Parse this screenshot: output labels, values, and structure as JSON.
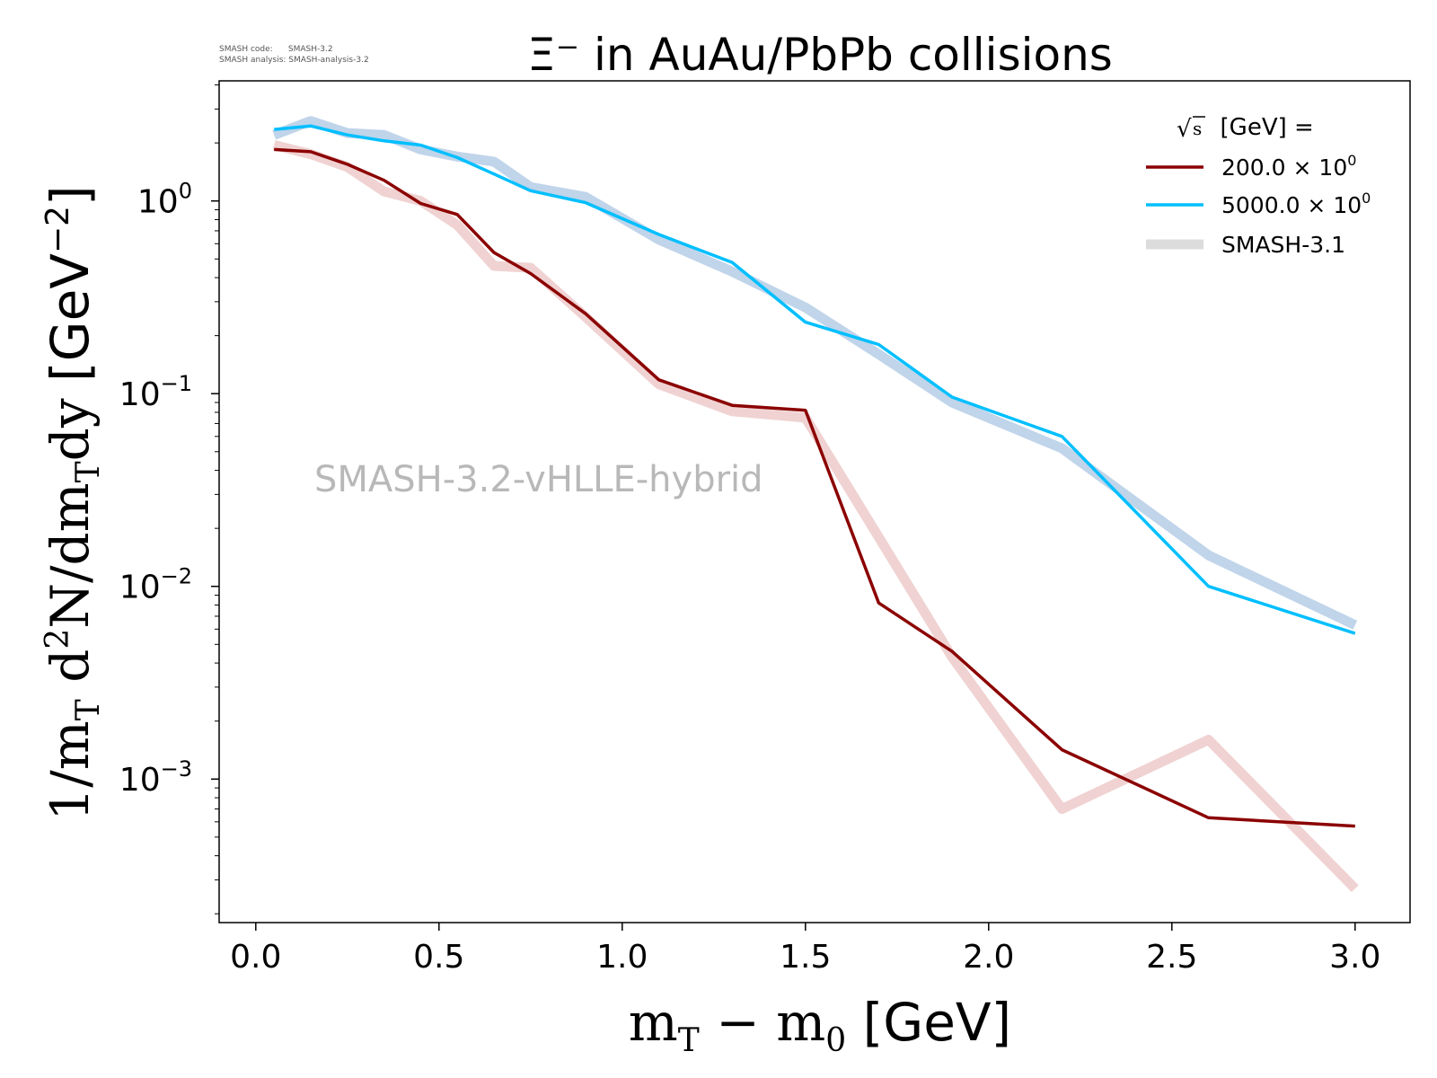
{
  "info": {
    "code_line": "SMASH code:      SMASH-3.2",
    "analysis_line": "SMASH analysis: SMASH-analysis-3.2"
  },
  "chart_data": {
    "type": "line",
    "title": "Ξ⁻ in AuAu/PbPb collisions",
    "xlabel": "m",
    "xlabel_sub": "T",
    "xlabel_mid": " − m",
    "xlabel_sub2": "0",
    "xlabel_unit": " [GeV]",
    "ylabel_parts": {
      "a": "1/m",
      "a_sub": "T",
      "b": " d",
      "b_sup": "2",
      "c": "N/dm",
      "c_sub": "T",
      "d": "dy",
      "unit": " [GeV",
      "unit_sup": "−2",
      "unit_end": "]"
    },
    "xlim": [
      -0.1,
      3.15
    ],
    "ylim": [
      0.00018,
      4.2
    ],
    "y_scale": "log",
    "x_ticks": [
      "0.0",
      "0.5",
      "1.0",
      "1.5",
      "2.0",
      "2.5",
      "3.0"
    ],
    "y_ticks": [
      {
        "base": "10",
        "exp": "0"
      },
      {
        "base": "10",
        "exp": "−1"
      },
      {
        "base": "10",
        "exp": "−2"
      },
      {
        "base": "10",
        "exp": "−3"
      }
    ],
    "watermark": "SMASH-3.2-vHLLE-hybrid",
    "legend": {
      "placement": "top-right",
      "title_sqrt": "s",
      "title_rest": "  [GeV] =",
      "entries": [
        {
          "label": "200.0 × 10",
          "sup": "0",
          "color": "#8b0000"
        },
        {
          "label": "5000.0 × 10",
          "sup": "0",
          "color": "#00bfff"
        },
        {
          "label": "SMASH-3.1",
          "sup": "",
          "color": "#dcdcdc"
        }
      ]
    },
    "series": [
      {
        "name": "200.0 × 10⁰",
        "color": "#8b0000",
        "x": [
          0.05,
          0.15,
          0.25,
          0.35,
          0.45,
          0.55,
          0.65,
          0.75,
          0.9,
          1.1,
          1.3,
          1.5,
          1.7,
          1.9,
          2.2,
          2.6,
          3.0
        ],
        "y": [
          1.85,
          1.8,
          1.55,
          1.28,
          0.97,
          0.85,
          0.54,
          0.42,
          0.26,
          0.118,
          0.087,
          0.082,
          0.0082,
          0.0046,
          0.00142,
          0.00063,
          0.00057
        ]
      },
      {
        "name": "5000.0 × 10⁰",
        "color": "#00bfff",
        "x": [
          0.05,
          0.15,
          0.25,
          0.35,
          0.45,
          0.55,
          0.65,
          0.75,
          0.9,
          1.1,
          1.3,
          1.5,
          1.7,
          1.9,
          2.2,
          2.6,
          3.0
        ],
        "y": [
          2.35,
          2.45,
          2.2,
          2.05,
          1.95,
          1.68,
          1.38,
          1.13,
          0.98,
          0.67,
          0.48,
          0.235,
          0.18,
          0.096,
          0.06,
          0.01,
          0.0057
        ]
      },
      {
        "name": "SMASH-3.1 (200)",
        "color": "#f0d2d2",
        "x": [
          0.05,
          0.15,
          0.25,
          0.35,
          0.45,
          0.55,
          0.65,
          0.75,
          0.9,
          1.1,
          1.3,
          1.5,
          1.7,
          1.9,
          2.2,
          2.6,
          3.0
        ],
        "y": [
          1.95,
          1.75,
          1.5,
          1.12,
          1.0,
          0.75,
          0.46,
          0.45,
          0.25,
          0.112,
          0.081,
          0.075,
          0.018,
          0.0043,
          0.0007,
          0.0016,
          0.00027
        ]
      },
      {
        "name": "SMASH-3.1 (5000)",
        "color": "#c0d4ea",
        "x": [
          0.05,
          0.15,
          0.25,
          0.35,
          0.45,
          0.55,
          0.65,
          0.75,
          0.9,
          1.1,
          1.3,
          1.5,
          1.7,
          1.9,
          2.2,
          2.6,
          3.0
        ],
        "y": [
          2.2,
          2.6,
          2.25,
          2.2,
          1.85,
          1.7,
          1.6,
          1.18,
          1.05,
          0.63,
          0.43,
          0.28,
          0.16,
          0.09,
          0.052,
          0.0145,
          0.0063
        ]
      }
    ]
  }
}
